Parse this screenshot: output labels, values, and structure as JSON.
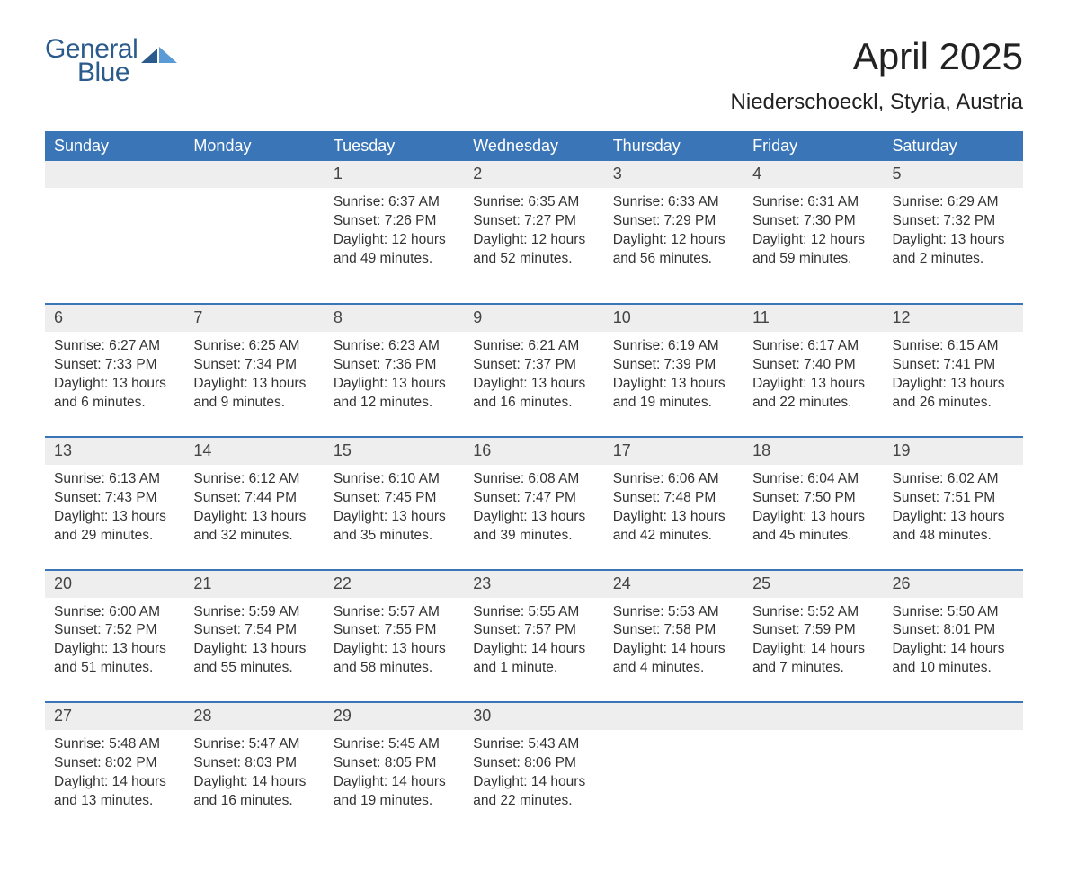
{
  "brand": {
    "word1": "General",
    "word2": "Blue",
    "text_color": "#2b5b8c",
    "mark_color_dark": "#2b5b8c",
    "mark_color_light": "#5a9bd5"
  },
  "header": {
    "title": "April 2025",
    "location": "Niederschoeckl, Styria, Austria"
  },
  "calendar": {
    "type": "table",
    "header_bg": "#3a76b7",
    "header_text_color": "#ffffff",
    "row_divider_color": "#3a76b7",
    "daynum_bg": "#eeeeee",
    "background_color": "#ffffff",
    "text_color": "#333333",
    "font_family": "Arial, Helvetica, sans-serif",
    "columns": [
      "Sunday",
      "Monday",
      "Tuesday",
      "Wednesday",
      "Thursday",
      "Friday",
      "Saturday"
    ],
    "weeks": [
      [
        {
          "day": "",
          "sunrise": "",
          "sunset": "",
          "daylight": ""
        },
        {
          "day": "",
          "sunrise": "",
          "sunset": "",
          "daylight": ""
        },
        {
          "day": "1",
          "sunrise": "Sunrise: 6:37 AM",
          "sunset": "Sunset: 7:26 PM",
          "daylight": "Daylight: 12 hours and 49 minutes."
        },
        {
          "day": "2",
          "sunrise": "Sunrise: 6:35 AM",
          "sunset": "Sunset: 7:27 PM",
          "daylight": "Daylight: 12 hours and 52 minutes."
        },
        {
          "day": "3",
          "sunrise": "Sunrise: 6:33 AM",
          "sunset": "Sunset: 7:29 PM",
          "daylight": "Daylight: 12 hours and 56 minutes."
        },
        {
          "day": "4",
          "sunrise": "Sunrise: 6:31 AM",
          "sunset": "Sunset: 7:30 PM",
          "daylight": "Daylight: 12 hours and 59 minutes."
        },
        {
          "day": "5",
          "sunrise": "Sunrise: 6:29 AM",
          "sunset": "Sunset: 7:32 PM",
          "daylight": "Daylight: 13 hours and 2 minutes."
        }
      ],
      [
        {
          "day": "6",
          "sunrise": "Sunrise: 6:27 AM",
          "sunset": "Sunset: 7:33 PM",
          "daylight": "Daylight: 13 hours and 6 minutes."
        },
        {
          "day": "7",
          "sunrise": "Sunrise: 6:25 AM",
          "sunset": "Sunset: 7:34 PM",
          "daylight": "Daylight: 13 hours and 9 minutes."
        },
        {
          "day": "8",
          "sunrise": "Sunrise: 6:23 AM",
          "sunset": "Sunset: 7:36 PM",
          "daylight": "Daylight: 13 hours and 12 minutes."
        },
        {
          "day": "9",
          "sunrise": "Sunrise: 6:21 AM",
          "sunset": "Sunset: 7:37 PM",
          "daylight": "Daylight: 13 hours and 16 minutes."
        },
        {
          "day": "10",
          "sunrise": "Sunrise: 6:19 AM",
          "sunset": "Sunset: 7:39 PM",
          "daylight": "Daylight: 13 hours and 19 minutes."
        },
        {
          "day": "11",
          "sunrise": "Sunrise: 6:17 AM",
          "sunset": "Sunset: 7:40 PM",
          "daylight": "Daylight: 13 hours and 22 minutes."
        },
        {
          "day": "12",
          "sunrise": "Sunrise: 6:15 AM",
          "sunset": "Sunset: 7:41 PM",
          "daylight": "Daylight: 13 hours and 26 minutes."
        }
      ],
      [
        {
          "day": "13",
          "sunrise": "Sunrise: 6:13 AM",
          "sunset": "Sunset: 7:43 PM",
          "daylight": "Daylight: 13 hours and 29 minutes."
        },
        {
          "day": "14",
          "sunrise": "Sunrise: 6:12 AM",
          "sunset": "Sunset: 7:44 PM",
          "daylight": "Daylight: 13 hours and 32 minutes."
        },
        {
          "day": "15",
          "sunrise": "Sunrise: 6:10 AM",
          "sunset": "Sunset: 7:45 PM",
          "daylight": "Daylight: 13 hours and 35 minutes."
        },
        {
          "day": "16",
          "sunrise": "Sunrise: 6:08 AM",
          "sunset": "Sunset: 7:47 PM",
          "daylight": "Daylight: 13 hours and 39 minutes."
        },
        {
          "day": "17",
          "sunrise": "Sunrise: 6:06 AM",
          "sunset": "Sunset: 7:48 PM",
          "daylight": "Daylight: 13 hours and 42 minutes."
        },
        {
          "day": "18",
          "sunrise": "Sunrise: 6:04 AM",
          "sunset": "Sunset: 7:50 PM",
          "daylight": "Daylight: 13 hours and 45 minutes."
        },
        {
          "day": "19",
          "sunrise": "Sunrise: 6:02 AM",
          "sunset": "Sunset: 7:51 PM",
          "daylight": "Daylight: 13 hours and 48 minutes."
        }
      ],
      [
        {
          "day": "20",
          "sunrise": "Sunrise: 6:00 AM",
          "sunset": "Sunset: 7:52 PM",
          "daylight": "Daylight: 13 hours and 51 minutes."
        },
        {
          "day": "21",
          "sunrise": "Sunrise: 5:59 AM",
          "sunset": "Sunset: 7:54 PM",
          "daylight": "Daylight: 13 hours and 55 minutes."
        },
        {
          "day": "22",
          "sunrise": "Sunrise: 5:57 AM",
          "sunset": "Sunset: 7:55 PM",
          "daylight": "Daylight: 13 hours and 58 minutes."
        },
        {
          "day": "23",
          "sunrise": "Sunrise: 5:55 AM",
          "sunset": "Sunset: 7:57 PM",
          "daylight": "Daylight: 14 hours and 1 minute."
        },
        {
          "day": "24",
          "sunrise": "Sunrise: 5:53 AM",
          "sunset": "Sunset: 7:58 PM",
          "daylight": "Daylight: 14 hours and 4 minutes."
        },
        {
          "day": "25",
          "sunrise": "Sunrise: 5:52 AM",
          "sunset": "Sunset: 7:59 PM",
          "daylight": "Daylight: 14 hours and 7 minutes."
        },
        {
          "day": "26",
          "sunrise": "Sunrise: 5:50 AM",
          "sunset": "Sunset: 8:01 PM",
          "daylight": "Daylight: 14 hours and 10 minutes."
        }
      ],
      [
        {
          "day": "27",
          "sunrise": "Sunrise: 5:48 AM",
          "sunset": "Sunset: 8:02 PM",
          "daylight": "Daylight: 14 hours and 13 minutes."
        },
        {
          "day": "28",
          "sunrise": "Sunrise: 5:47 AM",
          "sunset": "Sunset: 8:03 PM",
          "daylight": "Daylight: 14 hours and 16 minutes."
        },
        {
          "day": "29",
          "sunrise": "Sunrise: 5:45 AM",
          "sunset": "Sunset: 8:05 PM",
          "daylight": "Daylight: 14 hours and 19 minutes."
        },
        {
          "day": "30",
          "sunrise": "Sunrise: 5:43 AM",
          "sunset": "Sunset: 8:06 PM",
          "daylight": "Daylight: 14 hours and 22 minutes."
        },
        {
          "day": "",
          "sunrise": "",
          "sunset": "",
          "daylight": ""
        },
        {
          "day": "",
          "sunrise": "",
          "sunset": "",
          "daylight": ""
        },
        {
          "day": "",
          "sunrise": "",
          "sunset": "",
          "daylight": ""
        }
      ]
    ]
  }
}
